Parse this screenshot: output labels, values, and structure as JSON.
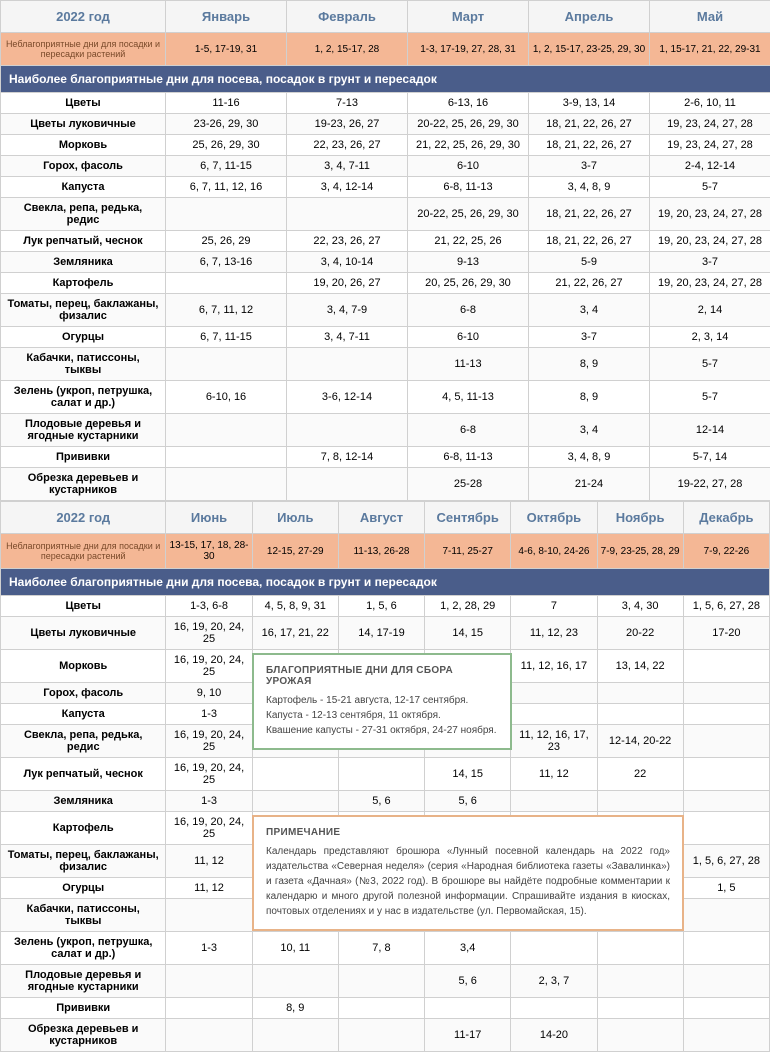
{
  "year": "2022 год",
  "badDaysLabel": "Неблагоприятные дни для посадки и пересадки растений",
  "sectionHeader": "Наиболее благоприятные дни для посева, посадок в грунт и пересадок",
  "rowLabels": [
    "Цветы",
    "Цветы луковичные",
    "Морковь",
    "Горох, фасоль",
    "Капуста",
    "Свекла, репа, редька, редис",
    "Лук репчатый, чеснок",
    "Земляника",
    "Картофель",
    "Томаты, перец, баклажаны, физалис",
    "Огурцы",
    "Кабачки, патиссоны, тыквы",
    "Зелень (укроп, петрушка, салат и др.)",
    "Плодовые деревья и ягодные кустарники",
    "Прививки",
    "Обрезка деревьев и кустарников"
  ],
  "t1": {
    "months": [
      "Январь",
      "Февраль",
      "Март",
      "Апрель",
      "Май"
    ],
    "bad": [
      "1-5, 17-19, 31",
      "1, 2, 15-17, 28",
      "1-3, 17-19, 27, 28, 31",
      "1, 2, 15-17, 23-25, 29, 30",
      "1, 15-17, 21, 22, 29-31"
    ],
    "rows": [
      [
        "11-16",
        "7-13",
        "6-13, 16",
        "3-9, 13, 14",
        "2-6, 10, 11"
      ],
      [
        "23-26, 29, 30",
        "19-23, 26, 27",
        "20-22, 25, 26, 29, 30",
        "18, 21, 22, 26, 27",
        "19, 23, 24, 27, 28"
      ],
      [
        "25, 26, 29, 30",
        "22, 23, 26, 27",
        "21, 22, 25, 26, 29, 30",
        "18, 21, 22, 26, 27",
        "19, 23, 24, 27, 28"
      ],
      [
        "6, 7, 11-15",
        "3, 4, 7-11",
        "6-10",
        "3-7",
        "2-4, 12-14"
      ],
      [
        "6, 7, 11, 12, 16",
        "3, 4, 12-14",
        "6-8, 11-13",
        "3, 4, 8, 9",
        "5-7"
      ],
      [
        "",
        "",
        "20-22, 25, 26, 29, 30",
        "18, 21, 22, 26, 27",
        "19, 20, 23, 24, 27, 28"
      ],
      [
        "25, 26, 29",
        "22, 23, 26, 27",
        "21, 22, 25, 26",
        "18, 21, 22, 26, 27",
        "19, 20, 23, 24, 27, 28"
      ],
      [
        "6, 7, 13-16",
        "3, 4, 10-14",
        "9-13",
        "5-9",
        "3-7"
      ],
      [
        "",
        "19, 20, 26, 27",
        "20, 25, 26, 29, 30",
        "21, 22, 26, 27",
        "19, 20, 23, 24, 27, 28"
      ],
      [
        "6, 7, 11, 12",
        "3, 4, 7-9",
        "6-8",
        "3, 4",
        "2, 14"
      ],
      [
        "6, 7, 11-15",
        "3, 4, 7-11",
        "6-10",
        "3-7",
        "2, 3, 14"
      ],
      [
        "",
        "",
        "11-13",
        "8, 9",
        "5-7"
      ],
      [
        "6-10, 16",
        "3-6, 12-14",
        "4, 5, 11-13",
        "8, 9",
        "5-7"
      ],
      [
        "",
        "",
        "6-8",
        "3, 4",
        "12-14"
      ],
      [
        "",
        "7, 8, 12-14",
        "6-8, 11-13",
        "3, 4, 8, 9",
        "5-7, 14"
      ],
      [
        "",
        "",
        "25-28",
        "21-24",
        "19-22, 27, 28"
      ]
    ]
  },
  "t2": {
    "months": [
      "Июнь",
      "Июль",
      "Август",
      "Сентябрь",
      "Октябрь",
      "Ноябрь",
      "Декабрь"
    ],
    "bad": [
      "13-15, 17, 18, 28-30",
      "12-15, 27-29",
      "11-13, 26-28",
      "7-11, 25-27",
      "4-6, 8-10, 24-26",
      "7-9, 23-25, 28, 29",
      "7-9, 22-26"
    ],
    "rows": [
      [
        "1-3, 6-8",
        "4, 5, 8, 9, 31",
        "1, 5, 6",
        "1, 2, 28, 29",
        "7",
        "3, 4, 30",
        "1, 5, 6, 27, 28"
      ],
      [
        "16, 19, 20, 24, 25",
        "16, 17, 21, 22",
        "14, 17-19",
        "14, 15",
        "11, 12, 23",
        "20-22",
        "17-20"
      ],
      [
        "16, 19, 20, 24, 25",
        "",
        "",
        "",
        "11, 12, 16, 17",
        "13, 14, 22",
        ""
      ],
      [
        "9, 10",
        "",
        "",
        "",
        "",
        "",
        ""
      ],
      [
        "1-3",
        "",
        "",
        "",
        "",
        "",
        ""
      ],
      [
        "16, 19, 20, 24, 25",
        "",
        "",
        "",
        "11, 12, 16, 17, 23",
        "12-14, 20-22",
        ""
      ],
      [
        "16, 19, 20, 24, 25",
        "",
        "",
        "14, 15",
        "11, 12",
        "22",
        ""
      ],
      [
        "1-3",
        "",
        "5, 6",
        "5, 6",
        "",
        "",
        ""
      ],
      [
        "16, 19, 20, 24, 25",
        "",
        "",
        "",
        "",
        "",
        ""
      ],
      [
        "11, 12",
        "",
        "",
        "",
        "",
        "",
        "1, 5, 6, 27, 28"
      ],
      [
        "11, 12",
        "",
        "",
        "",
        "",
        "",
        "1, 5"
      ],
      [
        "",
        "",
        "",
        "",
        "",
        "",
        ""
      ],
      [
        "1-3",
        "10, 11",
        "7, 8",
        "3,4",
        "",
        "",
        ""
      ],
      [
        "",
        "",
        "",
        "5, 6",
        "2, 3, 7",
        "",
        ""
      ],
      [
        "",
        "8, 9",
        "",
        "",
        "",
        "",
        ""
      ],
      [
        "",
        "",
        "",
        "11-17",
        "14-20",
        "",
        ""
      ]
    ]
  },
  "greenBox": {
    "title": "БЛАГОПРИЯТНЫЕ ДНИ ДЛЯ СБОРА УРОЖАЯ",
    "l1": "Картофель - 15-21 августа, 12-17 сентября.",
    "l2": "Капуста - 12-13 сентября, 11 октября.",
    "l3": "Квашение капусты - 27-31 октября, 24-27 ноября."
  },
  "orangeBox": {
    "title": "ПРИМЕЧАНИЕ",
    "text": "Календарь представляют брошюра «Лунный посевной календарь на 2022 год» издательства «Северная неделя» (серия «Народная библиотека газеты «Завалинка») и газета «Дачная» (№3, 2022 год). В брошюре вы найдёте подробные комментарии к календарю и много другой полезной информации. Спрашивайте издания в киосках, почтовых отделениях и у нас в издательстве (ул. Первомайская, 15)."
  },
  "colors": {
    "header": "#5b7a9e",
    "section": "#4a5d8a",
    "bad": "#f4b795"
  }
}
